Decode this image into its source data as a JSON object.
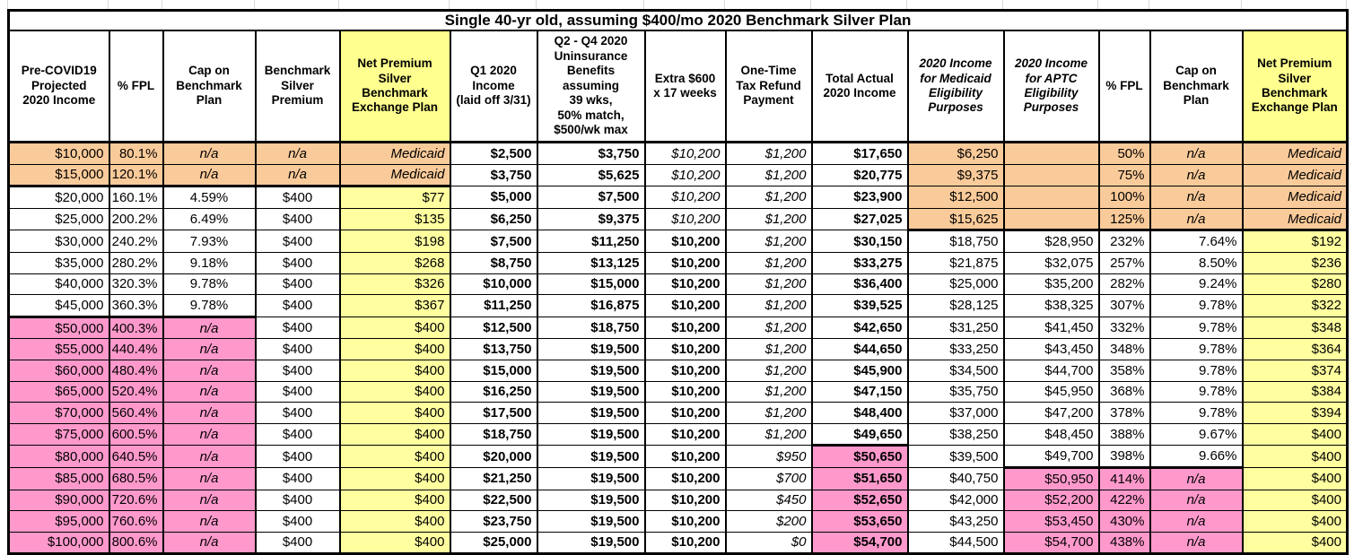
{
  "title": "Single 40-yr old, assuming $400/mo 2020 Benchmark Silver Plan",
  "colors": {
    "orange": "#FACB9A",
    "pink": "#FF99CC",
    "yellow_header": "#FFFF8F",
    "yellow_cell": "#FFFFA0",
    "gridline": "#D9D9D9",
    "border": "#000000"
  },
  "columns": [
    {
      "key": "pre-covid-income",
      "label": "Pre-COVID19\nProjected\n2020 Income",
      "width": 112,
      "yellow": false,
      "italic": false
    },
    {
      "key": "pct-fpl",
      "label": "% FPL",
      "width": 60,
      "yellow": false,
      "italic": false
    },
    {
      "key": "cap-benchmark",
      "label": "Cap on\nBenchmark\nPlan",
      "width": 103,
      "yellow": false,
      "italic": false
    },
    {
      "key": "benchmark-premium",
      "label": "Benchmark\nSilver\nPremium",
      "width": 94,
      "yellow": false,
      "italic": false
    },
    {
      "key": "net-premium",
      "label": "Net Premium\nSilver\nBenchmark\nExchange Plan",
      "width": 123,
      "yellow": true,
      "italic": false
    },
    {
      "key": "q1-income",
      "label": "Q1 2020\nIncome\n(laid off 3/31)",
      "width": 97,
      "yellow": false,
      "italic": false
    },
    {
      "key": "q2q4-uninsurance",
      "label": "Q2 - Q4 2020\nUninsurance\nBenefits\nassuming\n39 wks,\n50% match,\n$500/wk max",
      "width": 120,
      "yellow": false,
      "italic": false
    },
    {
      "key": "extra-600",
      "label": "Extra $600\nx 17 weeks",
      "width": 90,
      "yellow": false,
      "italic": false
    },
    {
      "key": "tax-refund",
      "label": "One-Time\nTax Refund\nPayment",
      "width": 96,
      "yellow": false,
      "italic": false
    },
    {
      "key": "total-actual-income",
      "label": "Total Actual\n2020 Income",
      "width": 107,
      "yellow": false,
      "italic": false
    },
    {
      "key": "income-medicaid",
      "label": "2020 Income\nfor Medicaid\nEligibility\nPurposes",
      "width": 107,
      "yellow": false,
      "italic": true
    },
    {
      "key": "income-aptc",
      "label": "2020 Income\nfor APTC\nEligibility\nPurposes",
      "width": 106,
      "yellow": false,
      "italic": true
    },
    {
      "key": "pct-fpl-2",
      "label": "% FPL",
      "width": 57,
      "yellow": false,
      "italic": false
    },
    {
      "key": "cap-benchmark-2",
      "label": "Cap on\nBenchmark\nPlan",
      "width": 103,
      "yellow": false,
      "italic": false
    },
    {
      "key": "net-premium-2",
      "label": "Net Premium\nSilver\nBenchmark\nExchange Plan",
      "width": 117,
      "yellow": true,
      "italic": false
    }
  ],
  "rows": [
    [
      "$10,000",
      "80.1%",
      "n/a",
      "n/a",
      "Medicaid",
      "$2,500",
      "$3,750",
      "$10,200",
      "$1,200",
      "$17,650",
      "$6,250",
      "",
      "50%",
      "n/a",
      "Medicaid"
    ],
    [
      "$15,000",
      "120.1%",
      "n/a",
      "n/a",
      "Medicaid",
      "$3,750",
      "$5,625",
      "$10,200",
      "$1,200",
      "$20,775",
      "$9,375",
      "",
      "75%",
      "n/a",
      "Medicaid"
    ],
    [
      "$20,000",
      "160.1%",
      "4.59%",
      "$400",
      "$77",
      "$5,000",
      "$7,500",
      "$10,200",
      "$1,200",
      "$23,900",
      "$12,500",
      "",
      "100%",
      "n/a",
      "Medicaid"
    ],
    [
      "$25,000",
      "200.2%",
      "6.49%",
      "$400",
      "$135",
      "$6,250",
      "$9,375",
      "$10,200",
      "$1,200",
      "$27,025",
      "$15,625",
      "",
      "125%",
      "n/a",
      "Medicaid"
    ],
    [
      "$30,000",
      "240.2%",
      "7.93%",
      "$400",
      "$198",
      "$7,500",
      "$11,250",
      "$10,200",
      "$1,200",
      "$30,150",
      "$18,750",
      "$28,950",
      "232%",
      "7.64%",
      "$192"
    ],
    [
      "$35,000",
      "280.2%",
      "9.18%",
      "$400",
      "$268",
      "$8,750",
      "$13,125",
      "$10,200",
      "$1,200",
      "$33,275",
      "$21,875",
      "$32,075",
      "257%",
      "8.50%",
      "$236"
    ],
    [
      "$40,000",
      "320.3%",
      "9.78%",
      "$400",
      "$326",
      "$10,000",
      "$15,000",
      "$10,200",
      "$1,200",
      "$36,400",
      "$25,000",
      "$35,200",
      "282%",
      "9.24%",
      "$280"
    ],
    [
      "$45,000",
      "360.3%",
      "9.78%",
      "$400",
      "$367",
      "$11,250",
      "$16,875",
      "$10,200",
      "$1,200",
      "$39,525",
      "$28,125",
      "$38,325",
      "307%",
      "9.78%",
      "$322"
    ],
    [
      "$50,000",
      "400.3%",
      "n/a",
      "$400",
      "$400",
      "$12,500",
      "$18,750",
      "$10,200",
      "$1,200",
      "$42,650",
      "$31,250",
      "$41,450",
      "332%",
      "9.78%",
      "$348"
    ],
    [
      "$55,000",
      "440.4%",
      "n/a",
      "$400",
      "$400",
      "$13,750",
      "$19,500",
      "$10,200",
      "$1,200",
      "$44,650",
      "$33,250",
      "$43,450",
      "348%",
      "9.78%",
      "$364"
    ],
    [
      "$60,000",
      "480.4%",
      "n/a",
      "$400",
      "$400",
      "$15,000",
      "$19,500",
      "$10,200",
      "$1,200",
      "$45,900",
      "$34,500",
      "$44,700",
      "358%",
      "9.78%",
      "$374"
    ],
    [
      "$65,000",
      "520.4%",
      "n/a",
      "$400",
      "$400",
      "$16,250",
      "$19,500",
      "$10,200",
      "$1,200",
      "$47,150",
      "$35,750",
      "$45,950",
      "368%",
      "9.78%",
      "$384"
    ],
    [
      "$70,000",
      "560.4%",
      "n/a",
      "$400",
      "$400",
      "$17,500",
      "$19,500",
      "$10,200",
      "$1,200",
      "$48,400",
      "$37,000",
      "$47,200",
      "378%",
      "9.78%",
      "$394"
    ],
    [
      "$75,000",
      "600.5%",
      "n/a",
      "$400",
      "$400",
      "$18,750",
      "$19,500",
      "$10,200",
      "$1,200",
      "$49,650",
      "$38,250",
      "$48,450",
      "388%",
      "9.67%",
      "$400"
    ],
    [
      "$80,000",
      "640.5%",
      "n/a",
      "$400",
      "$400",
      "$20,000",
      "$19,500",
      "$10,200",
      "$950",
      "$50,650",
      "$39,500",
      "$49,700",
      "398%",
      "9.66%",
      "$400"
    ],
    [
      "$85,000",
      "680.5%",
      "n/a",
      "$400",
      "$400",
      "$21,250",
      "$19,500",
      "$10,200",
      "$700",
      "$51,650",
      "$40,750",
      "$50,950",
      "414%",
      "n/a",
      "$400"
    ],
    [
      "$90,000",
      "720.6%",
      "n/a",
      "$400",
      "$400",
      "$22,500",
      "$19,500",
      "$10,200",
      "$450",
      "$52,650",
      "$42,000",
      "$52,200",
      "422%",
      "n/a",
      "$400"
    ],
    [
      "$95,000",
      "760.6%",
      "n/a",
      "$400",
      "$400",
      "$23,750",
      "$19,500",
      "$10,200",
      "$200",
      "$53,650",
      "$43,250",
      "$53,450",
      "430%",
      "n/a",
      "$400"
    ],
    [
      "$100,000",
      "800.6%",
      "n/a",
      "$400",
      "$400",
      "$25,000",
      "$19,500",
      "$10,200",
      "$0",
      "$54,700",
      "$44,500",
      "$54,700",
      "438%",
      "n/a",
      "$400"
    ]
  ],
  "format_regions": {
    "orange": [
      [
        0,
        1,
        0,
        4
      ],
      [
        0,
        3,
        10,
        14
      ]
    ],
    "pink": [
      [
        8,
        18,
        0,
        2
      ],
      [
        14,
        18,
        9,
        9
      ],
      [
        15,
        18,
        11,
        13
      ]
    ],
    "bold_cols": [
      5,
      6,
      9
    ],
    "italic_cols": [
      8
    ],
    "center_cols": [
      2,
      3
    ],
    "extra600_col": 7,
    "thick_top_edges": [
      [
        2,
        0,
        4
      ],
      [
        4,
        10,
        14
      ],
      [
        8,
        0,
        2
      ],
      [
        14,
        9,
        9
      ],
      [
        15,
        11,
        13
      ]
    ]
  }
}
